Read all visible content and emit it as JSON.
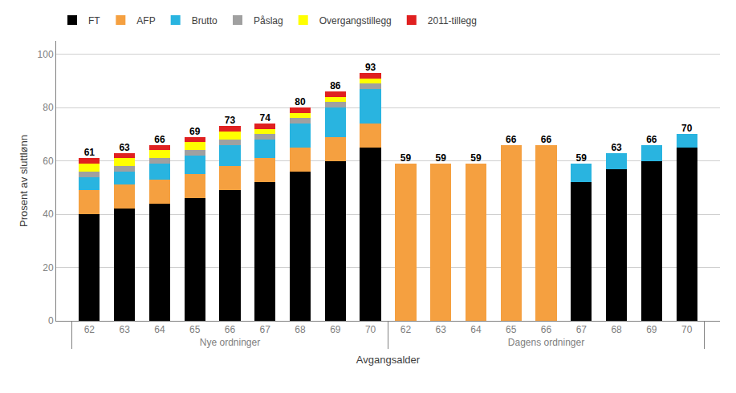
{
  "chart_data": {
    "type": "bar",
    "stacked": true,
    "ylabel": "Prosent av sluttlønn",
    "xlabel": "Avgangsalder",
    "ylim": [
      0,
      105
    ],
    "yticks": [
      0,
      20,
      40,
      60,
      80,
      100
    ],
    "grid": true,
    "legend": "upper left",
    "groups": [
      {
        "name": "Nye ordninger",
        "categories": [
          "62",
          "63",
          "64",
          "65",
          "66",
          "67",
          "68",
          "69",
          "70"
        ],
        "totals": [
          61,
          63,
          66,
          69,
          73,
          74,
          80,
          86,
          93
        ],
        "series": [
          {
            "name": "FT",
            "color": "#000000",
            "values": [
              40,
              42,
              44,
              46,
              49,
              52,
              56,
              60,
              65
            ]
          },
          {
            "name": "AFP",
            "color": "#f5a040",
            "values": [
              9,
              9,
              9,
              9,
              9,
              9,
              9,
              9,
              9
            ]
          },
          {
            "name": "Brutto",
            "color": "#29b4e0",
            "values": [
              5,
              5,
              6,
              7,
              8,
              7,
              9,
              11,
              13
            ]
          },
          {
            "name": "Påslag",
            "color": "#a0a0a0",
            "values": [
              2,
              2,
              2,
              2,
              2,
              2,
              2,
              2,
              2
            ]
          },
          {
            "name": "Overgangstillegg",
            "color": "#ffff00",
            "values": [
              3,
              3,
              3,
              3,
              3,
              2,
              2,
              2,
              2
            ]
          },
          {
            "name": "2011-tillegg",
            "color": "#e02020",
            "values": [
              2,
              2,
              2,
              2,
              2,
              2,
              2,
              2,
              2
            ]
          }
        ]
      },
      {
        "name": "Dagens ordninger",
        "categories": [
          "62",
          "63",
          "64",
          "65",
          "66",
          "67",
          "68",
          "69",
          "70"
        ],
        "totals": [
          59,
          59,
          59,
          66,
          66,
          59,
          63,
          66,
          70
        ],
        "series": [
          {
            "name": "AFP",
            "color": "#f5a040",
            "values": [
              59,
              59,
              59,
              66,
              66,
              0,
              0,
              0,
              0
            ]
          },
          {
            "name": "FT",
            "color": "#000000",
            "values": [
              0,
              0,
              0,
              0,
              0,
              52,
              57,
              60,
              65
            ]
          },
          {
            "name": "Brutto",
            "color": "#29b4e0",
            "values": [
              0,
              0,
              0,
              0,
              0,
              7,
              6,
              6,
              5
            ]
          }
        ]
      }
    ]
  }
}
